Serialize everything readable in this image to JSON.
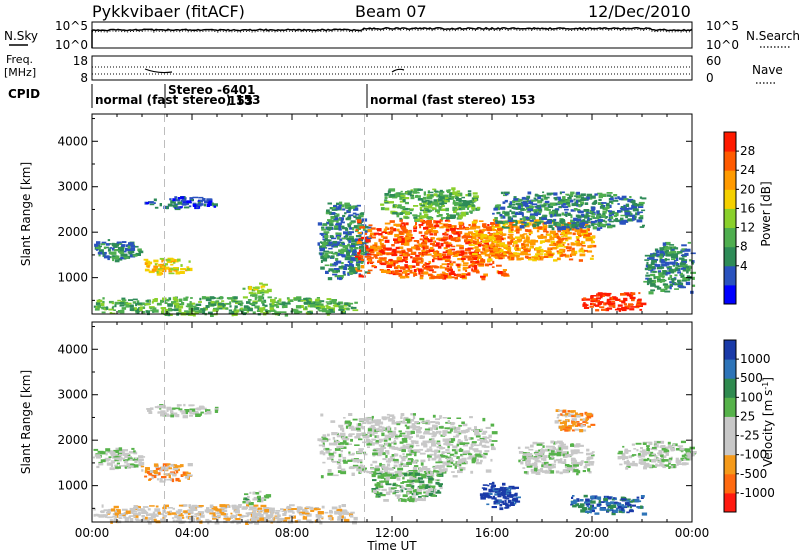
{
  "header": {
    "radar": "Pykkvibaer (fitACF)",
    "beam": "Beam 07",
    "date": "12/Dec/2010"
  },
  "noise_panel": {
    "left_label": "N.Sky",
    "right_label": "N.Search",
    "left_ticks": [
      "10^5",
      "10^0"
    ],
    "right_ticks": [
      "10^5",
      "10^0"
    ]
  },
  "freq_panel": {
    "left_label_1": "Freq.",
    "left_label_2": "[MHz]",
    "right_label": "Nave",
    "left_ticks": [
      "18",
      "8"
    ],
    "right_ticks": [
      "60",
      "0"
    ]
  },
  "cpid_panel": {
    "label": "CPID",
    "segments": [
      {
        "label": "normal (fast stereo) 153",
        "start_hour": 0
      },
      {
        "label": "Stereo -6401",
        "start_hour": 2.9
      },
      {
        "label": "normal (fast stereo) 153",
        "start_hour": 10.9
      }
    ],
    "extra_label": "153"
  },
  "x_axis": {
    "label": "Time UT",
    "ticks": [
      "00:00",
      "04:00",
      "08:00",
      "12:00",
      "16:00",
      "20:00",
      "00:00"
    ]
  },
  "colors": {
    "power_scale": [
      "#0000ff",
      "#2a52be",
      "#2e8b57",
      "#4fae4f",
      "#8ad02c",
      "#f5d000",
      "#ff9a00",
      "#ff5a00",
      "#ff1a00"
    ],
    "velocity_scale": [
      "#1a3aa8",
      "#2e74b8",
      "#2f8a4f",
      "#56b24a",
      "#c8c8c8",
      "#c8c8c8",
      "#f59a1a",
      "#ff6a10",
      "#ff1a10"
    ]
  },
  "chart_data": [
    {
      "type": "heatmap",
      "title": "",
      "xlabel": "Time UT",
      "ylabel": "Slant Range [km]",
      "xlim": [
        0,
        24
      ],
      "ylim": [
        200,
        4600
      ],
      "y_ticks": [
        1000,
        2000,
        3000,
        4000
      ],
      "colorbar_label": "Power [dB]",
      "colorbar_ticks": [
        28,
        24,
        20,
        16,
        12,
        8,
        4
      ],
      "regions": [
        {
          "t0": 0.0,
          "t1": 2.0,
          "r0": 1400,
          "r1": 1850,
          "level": 2
        },
        {
          "t0": 1.9,
          "t1": 3.9,
          "r0": 1100,
          "r1": 1450,
          "level": 5
        },
        {
          "t0": 2.1,
          "t1": 5.0,
          "r0": 2550,
          "r1": 2800,
          "level": 1
        },
        {
          "t0": 0.0,
          "t1": 10.5,
          "r0": 200,
          "r1": 600,
          "level": 3
        },
        {
          "t0": 6.0,
          "t1": 7.0,
          "r0": 600,
          "r1": 900,
          "level": 4
        },
        {
          "t0": 9.0,
          "t1": 11.0,
          "r0": 1000,
          "r1": 2700,
          "level": 2
        },
        {
          "t0": 10.5,
          "t1": 16.5,
          "r0": 1000,
          "r1": 2300,
          "level": 7
        },
        {
          "t0": 11.5,
          "t1": 15.5,
          "r0": 2300,
          "r1": 3000,
          "level": 3
        },
        {
          "t0": 15.0,
          "t1": 20.0,
          "r0": 1400,
          "r1": 2300,
          "level": 6
        },
        {
          "t0": 16.0,
          "t1": 22.0,
          "r0": 2100,
          "r1": 2900,
          "level": 2
        },
        {
          "t0": 19.5,
          "t1": 22.0,
          "r0": 300,
          "r1": 700,
          "level": 8
        },
        {
          "t0": 22.0,
          "t1": 24.0,
          "r0": 700,
          "r1": 1800,
          "level": 2
        }
      ]
    },
    {
      "type": "heatmap",
      "title": "",
      "xlabel": "Time UT",
      "ylabel": "Slant Range [km]",
      "xlim": [
        0,
        24
      ],
      "ylim": [
        200,
        4600
      ],
      "y_ticks": [
        1000,
        2000,
        3000,
        4000
      ],
      "colorbar_label": "Velocity [m s^-1]",
      "colorbar_ticks": [
        1000,
        500,
        100,
        25,
        -25,
        -100,
        -500,
        -1000
      ],
      "regions": [
        {
          "t0": 0.0,
          "t1": 2.0,
          "r0": 1400,
          "r1": 1850,
          "level": 4
        },
        {
          "t0": 1.9,
          "t1": 3.9,
          "r0": 1100,
          "r1": 1500,
          "level": 6
        },
        {
          "t0": 2.1,
          "t1": 5.0,
          "r0": 2550,
          "r1": 2800,
          "level": 4
        },
        {
          "t0": 0.0,
          "t1": 10.5,
          "r0": 200,
          "r1": 600,
          "level": 5
        },
        {
          "t0": 6.0,
          "t1": 7.0,
          "r0": 600,
          "r1": 900,
          "level": 3
        },
        {
          "t0": 9.0,
          "t1": 16.0,
          "r0": 1200,
          "r1": 2600,
          "level": 4
        },
        {
          "t0": 11.0,
          "t1": 14.0,
          "r0": 700,
          "r1": 1300,
          "level": 3
        },
        {
          "t0": 15.5,
          "t1": 17.0,
          "r0": 500,
          "r1": 1100,
          "level": 0
        },
        {
          "t0": 17.0,
          "t1": 20.0,
          "r0": 1300,
          "r1": 2000,
          "level": 4
        },
        {
          "t0": 19.0,
          "t1": 22.0,
          "r0": 400,
          "r1": 800,
          "level": 1
        },
        {
          "t0": 18.5,
          "t1": 20.0,
          "r0": 2200,
          "r1": 2700,
          "level": 6
        },
        {
          "t0": 21.0,
          "t1": 24.0,
          "r0": 1400,
          "r1": 2000,
          "level": 4
        }
      ]
    }
  ]
}
